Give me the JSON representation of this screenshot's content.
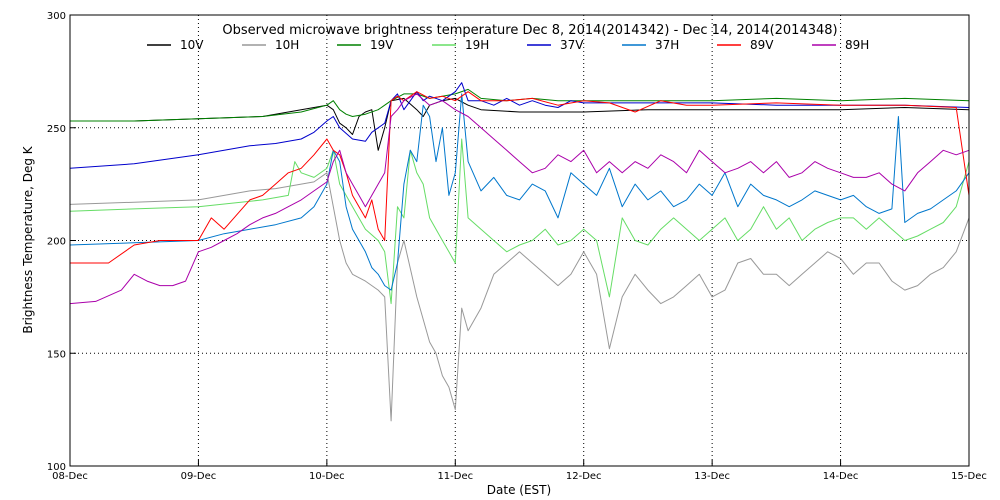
{
  "chart_data": {
    "type": "line",
    "title": "Observed microwave brightness temperature Dec  8, 2014(2014342) - Dec 14, 2014(2014348)",
    "xlabel": "Date (EST)",
    "ylabel": "Brightness Temperature, Deg K",
    "x_unit": "days since 08-Dec-2014",
    "xlim": [
      0,
      7
    ],
    "ylim": [
      100,
      300
    ],
    "x_ticks": [
      {
        "value": 0,
        "label": "08-Dec"
      },
      {
        "value": 1,
        "label": "09-Dec"
      },
      {
        "value": 2,
        "label": "10-Dec"
      },
      {
        "value": 3,
        "label": "11-Dec"
      },
      {
        "value": 4,
        "label": "12-Dec"
      },
      {
        "value": 5,
        "label": "13-Dec"
      },
      {
        "value": 6,
        "label": "14-Dec"
      },
      {
        "value": 7,
        "label": "15-Dec"
      }
    ],
    "y_ticks": [
      {
        "value": 100,
        "label": "100"
      },
      {
        "value": 150,
        "label": "150"
      },
      {
        "value": 200,
        "label": "200"
      },
      {
        "value": 250,
        "label": "250"
      },
      {
        "value": 300,
        "label": "300"
      }
    ],
    "grid": true,
    "legend_position": "top",
    "series": [
      {
        "name": "10V",
        "color": "#000000",
        "x": [
          0,
          0.5,
          1,
          1.5,
          1.8,
          2,
          2.05,
          2.1,
          2.15,
          2.2,
          2.25,
          2.3,
          2.35,
          2.4,
          2.45,
          2.5,
          2.6,
          2.7,
          2.75,
          2.8,
          2.9,
          3,
          3.1,
          3.2,
          3.5,
          4,
          4.5,
          5,
          5.5,
          6,
          6.5,
          7
        ],
        "y": [
          253,
          253,
          254,
          255,
          258,
          260,
          258,
          252,
          250,
          247,
          255,
          257,
          258,
          240,
          250,
          262,
          263,
          258,
          255,
          260,
          262,
          263,
          260,
          258,
          257,
          257,
          258,
          258,
          258,
          258,
          259,
          258
        ]
      },
      {
        "name": "10H",
        "color": "#999999",
        "x": [
          0,
          0.5,
          1,
          1.2,
          1.4,
          1.6,
          1.8,
          1.9,
          2,
          2.1,
          2.15,
          2.2,
          2.3,
          2.4,
          2.45,
          2.5,
          2.55,
          2.6,
          2.7,
          2.75,
          2.8,
          2.85,
          2.9,
          2.95,
          3,
          3.05,
          3.1,
          3.2,
          3.3,
          3.4,
          3.5,
          3.6,
          3.7,
          3.8,
          3.9,
          4,
          4.1,
          4.2,
          4.3,
          4.4,
          4.5,
          4.6,
          4.7,
          4.8,
          4.9,
          5,
          5.1,
          5.2,
          5.3,
          5.4,
          5.5,
          5.6,
          5.7,
          5.8,
          5.9,
          6,
          6.1,
          6.2,
          6.3,
          6.4,
          6.5,
          6.6,
          6.7,
          6.8,
          6.9,
          7
        ],
        "y": [
          216,
          217,
          218,
          220,
          222,
          223,
          225,
          226,
          230,
          200,
          190,
          185,
          182,
          178,
          175,
          120,
          190,
          200,
          175,
          165,
          155,
          150,
          140,
          135,
          125,
          170,
          160,
          170,
          185,
          190,
          195,
          190,
          185,
          180,
          185,
          195,
          185,
          152,
          175,
          185,
          178,
          172,
          175,
          180,
          185,
          175,
          178,
          190,
          192,
          185,
          185,
          180,
          185,
          190,
          195,
          192,
          185,
          190,
          190,
          182,
          178,
          180,
          185,
          188,
          195,
          210
        ]
      },
      {
        "name": "19V",
        "color": "#008000",
        "x": [
          0,
          0.5,
          1,
          1.5,
          1.8,
          2,
          2.05,
          2.1,
          2.15,
          2.2,
          2.3,
          2.4,
          2.5,
          2.6,
          2.7,
          2.8,
          2.9,
          3,
          3.1,
          3.2,
          3.4,
          3.6,
          3.8,
          4,
          4.5,
          5,
          5.5,
          6,
          6.5,
          7
        ],
        "y": [
          253,
          253,
          254,
          255,
          257,
          260,
          262,
          258,
          256,
          255,
          256,
          258,
          262,
          265,
          265,
          263,
          264,
          265,
          267,
          263,
          262,
          263,
          262,
          262,
          262,
          262,
          263,
          262,
          263,
          262
        ]
      },
      {
        "name": "19H",
        "color": "#66dd66",
        "x": [
          0,
          0.5,
          1,
          1.5,
          1.7,
          1.75,
          1.8,
          1.9,
          2,
          2.05,
          2.1,
          2.15,
          2.2,
          2.3,
          2.4,
          2.45,
          2.5,
          2.55,
          2.6,
          2.65,
          2.7,
          2.75,
          2.8,
          2.85,
          2.9,
          2.95,
          3,
          3.05,
          3.1,
          3.2,
          3.3,
          3.4,
          3.5,
          3.6,
          3.7,
          3.8,
          3.9,
          4,
          4.1,
          4.2,
          4.3,
          4.4,
          4.5,
          4.6,
          4.7,
          4.8,
          4.9,
          5,
          5.1,
          5.2,
          5.3,
          5.4,
          5.5,
          5.6,
          5.7,
          5.8,
          5.9,
          6,
          6.1,
          6.2,
          6.3,
          6.4,
          6.5,
          6.6,
          6.7,
          6.8,
          6.9,
          7
        ],
        "y": [
          213,
          214,
          215,
          218,
          220,
          235,
          230,
          228,
          232,
          240,
          225,
          220,
          215,
          205,
          200,
          195,
          172,
          215,
          210,
          240,
          230,
          225,
          210,
          205,
          200,
          195,
          190,
          245,
          210,
          205,
          200,
          195,
          198,
          200,
          205,
          198,
          200,
          205,
          200,
          175,
          210,
          200,
          198,
          205,
          210,
          205,
          200,
          205,
          210,
          200,
          205,
          215,
          205,
          210,
          200,
          205,
          208,
          210,
          210,
          205,
          210,
          205,
          200,
          202,
          205,
          208,
          215,
          235
        ]
      },
      {
        "name": "37V",
        "color": "#0000cc",
        "x": [
          0,
          0.5,
          1,
          1.2,
          1.4,
          1.6,
          1.8,
          1.9,
          2,
          2.05,
          2.1,
          2.2,
          2.3,
          2.35,
          2.4,
          2.45,
          2.5,
          2.55,
          2.6,
          2.7,
          2.75,
          2.8,
          2.9,
          3,
          3.05,
          3.1,
          3.2,
          3.3,
          3.4,
          3.5,
          3.6,
          3.7,
          3.8,
          3.9,
          4,
          4.5,
          5,
          5.5,
          6,
          6.5,
          7
        ],
        "y": [
          232,
          234,
          238,
          240,
          242,
          243,
          245,
          248,
          253,
          255,
          250,
          245,
          244,
          248,
          250,
          252,
          262,
          265,
          258,
          266,
          262,
          264,
          262,
          266,
          270,
          262,
          262,
          260,
          263,
          260,
          262,
          260,
          259,
          262,
          261,
          261,
          261,
          260,
          260,
          260,
          259
        ]
      },
      {
        "name": "37H",
        "color": "#0077cc",
        "x": [
          0,
          0.5,
          1,
          1.2,
          1.4,
          1.6,
          1.8,
          1.9,
          2,
          2.05,
          2.1,
          2.15,
          2.2,
          2.3,
          2.35,
          2.4,
          2.45,
          2.5,
          2.55,
          2.6,
          2.65,
          2.7,
          2.75,
          2.8,
          2.85,
          2.9,
          2.95,
          3,
          3.05,
          3.1,
          3.2,
          3.3,
          3.4,
          3.5,
          3.6,
          3.7,
          3.8,
          3.9,
          4,
          4.1,
          4.2,
          4.3,
          4.4,
          4.5,
          4.6,
          4.7,
          4.8,
          4.9,
          5,
          5.1,
          5.2,
          5.3,
          5.4,
          5.5,
          5.6,
          5.7,
          5.8,
          5.9,
          6,
          6.1,
          6.2,
          6.3,
          6.4,
          6.45,
          6.5,
          6.6,
          6.7,
          6.8,
          6.9,
          7
        ],
        "y": [
          198,
          199,
          200,
          203,
          205,
          207,
          210,
          215,
          225,
          240,
          235,
          215,
          205,
          195,
          188,
          185,
          180,
          178,
          190,
          225,
          240,
          235,
          260,
          255,
          235,
          250,
          220,
          230,
          265,
          235,
          222,
          228,
          220,
          218,
          225,
          222,
          210,
          230,
          225,
          220,
          232,
          215,
          225,
          218,
          222,
          215,
          218,
          225,
          220,
          230,
          215,
          225,
          220,
          218,
          215,
          218,
          222,
          220,
          218,
          220,
          215,
          212,
          214,
          255,
          208,
          212,
          214,
          218,
          222,
          230
        ]
      },
      {
        "name": "89V",
        "color": "#ff0000",
        "x": [
          0,
          0.3,
          0.5,
          0.7,
          1,
          1.1,
          1.2,
          1.4,
          1.5,
          1.6,
          1.7,
          1.8,
          1.9,
          2,
          2.05,
          2.1,
          2.15,
          2.2,
          2.25,
          2.3,
          2.35,
          2.4,
          2.45,
          2.5,
          2.55,
          2.6,
          2.7,
          2.8,
          2.9,
          3,
          3.1,
          3.2,
          3.4,
          3.6,
          3.8,
          4,
          4.2,
          4.4,
          4.6,
          4.8,
          5,
          5.5,
          6,
          6.5,
          6.9,
          7
        ],
        "y": [
          190,
          190,
          198,
          200,
          200,
          210,
          205,
          218,
          220,
          225,
          230,
          232,
          238,
          245,
          240,
          238,
          230,
          220,
          215,
          210,
          218,
          205,
          200,
          262,
          264,
          262,
          266,
          263,
          264,
          262,
          266,
          262,
          262,
          263,
          260,
          262,
          261,
          257,
          262,
          260,
          260,
          261,
          260,
          260,
          259,
          220
        ]
      },
      {
        "name": "89H",
        "color": "#aa00aa",
        "x": [
          0,
          0.2,
          0.4,
          0.5,
          0.6,
          0.7,
          0.8,
          0.9,
          1,
          1.1,
          1.2,
          1.3,
          1.4,
          1.5,
          1.6,
          1.7,
          1.8,
          1.9,
          2,
          2.05,
          2.1,
          2.15,
          2.2,
          2.25,
          2.3,
          2.35,
          2.4,
          2.45,
          2.5,
          2.55,
          2.6,
          2.7,
          2.8,
          2.9,
          3,
          3.1,
          3.2,
          3.3,
          3.4,
          3.5,
          3.6,
          3.7,
          3.8,
          3.9,
          4,
          4.1,
          4.2,
          4.3,
          4.4,
          4.5,
          4.6,
          4.7,
          4.8,
          4.9,
          5,
          5.1,
          5.2,
          5.3,
          5.4,
          5.5,
          5.6,
          5.7,
          5.8,
          5.9,
          6,
          6.1,
          6.2,
          6.3,
          6.4,
          6.5,
          6.6,
          6.7,
          6.8,
          6.9,
          7
        ],
        "y": [
          172,
          173,
          178,
          185,
          182,
          180,
          180,
          182,
          195,
          197,
          200,
          203,
          207,
          210,
          212,
          215,
          218,
          222,
          226,
          235,
          240,
          230,
          225,
          220,
          215,
          220,
          225,
          230,
          255,
          258,
          262,
          265,
          260,
          262,
          258,
          255,
          250,
          245,
          240,
          235,
          230,
          232,
          238,
          235,
          240,
          230,
          235,
          230,
          235,
          232,
          238,
          235,
          230,
          240,
          235,
          230,
          232,
          235,
          230,
          235,
          228,
          230,
          235,
          232,
          230,
          228,
          228,
          230,
          225,
          222,
          230,
          235,
          240,
          238,
          240
        ]
      }
    ]
  }
}
